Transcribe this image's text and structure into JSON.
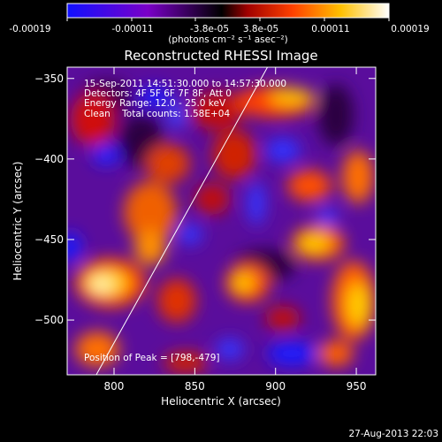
{
  "colorbar": {
    "tick_labels": [
      "-0.00019",
      "-0.00011",
      "-3.8e-05",
      "3.8e-05",
      "0.00011",
      "0.00019"
    ],
    "units": "(photons cm⁻² s⁻¹ asec⁻²)",
    "colors": [
      "#1010ff",
      "#7a00c8",
      "#000000",
      "#c00000",
      "#ff6000",
      "#ffd000",
      "#ffffff"
    ]
  },
  "image": {
    "title": "Reconstructed RHESSI Image",
    "info_lines": [
      "15-Sep-2011 14:51:30.000 to 14:57:30.000",
      "Detectors: 4F 5F 6F 7F 8F, Att 0",
      "Energy Range: 12.0 - 25.0 keV",
      "Clean    Total counts: 1.58E+04"
    ],
    "peak_label": "Position of Peak = [798,-479]",
    "x_axis": {
      "label": "Heliocentric X (arcsec)",
      "ticks": [
        800,
        850,
        900,
        950
      ],
      "range": [
        771,
        962
      ]
    },
    "y_axis": {
      "label": "Heliocentric Y (arcsec)",
      "ticks": [
        -350,
        -400,
        -450,
        -500
      ],
      "range": [
        -534,
        -343
      ]
    },
    "limb_line": {
      "x": [
        789,
        895
      ],
      "y": [
        -534,
        -343
      ]
    }
  },
  "footer": {
    "timestamp": "27-Aug-2013 22:03"
  }
}
